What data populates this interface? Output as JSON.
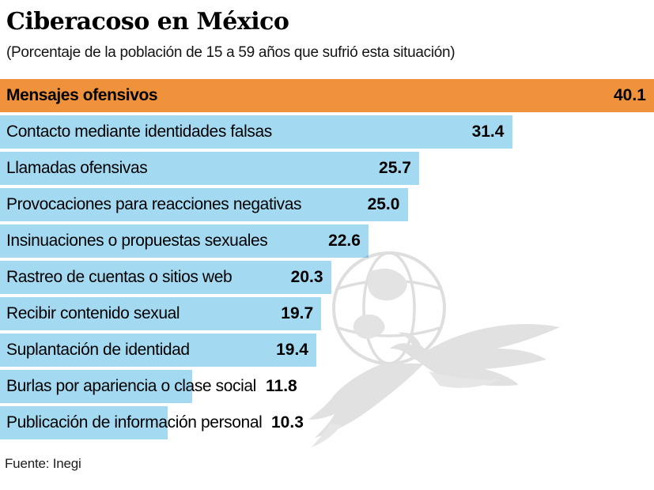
{
  "header": {
    "title": "Ciberacoso en México",
    "subtitle": "(Porcentaje de la población de 15 a 59 años que sufrió esta situación)"
  },
  "footer": {
    "source": "Fuente: Inegi"
  },
  "colors": {
    "highlight_bar": "#F0913C",
    "bar": "#A3DAF2",
    "text": "#000000",
    "watermark": "#E2E2E2"
  },
  "watermark": {
    "icon": "eagle-globe-logo"
  },
  "chart_data": {
    "type": "bar",
    "orientation": "horizontal",
    "title": "Ciberacoso en México",
    "subtitle": "(Porcentaje de la población de 15 a 59 años que sufrió esta situación)",
    "source": "Fuente: Inegi",
    "xlim": [
      0,
      40.1
    ],
    "max_value": 40.1,
    "grid": false,
    "legend": false,
    "axes_visible": false,
    "value_labels": "bold, right-aligned at bar end (flow after label when bar too short)",
    "highlight_index": 0,
    "categories": [
      "Mensajes ofensivos",
      "Contacto mediante identidades falsas",
      "Llamadas ofensivas",
      "Provocaciones para reacciones negativas",
      "Insinuaciones o propuestas sexuales",
      "Rastreo de cuentas o sitios web",
      "Recibir contenido sexual",
      "Suplantación de identidad",
      "Burlas por apariencia o clase social",
      "Publicación de información personal"
    ],
    "values": [
      40.1,
      31.4,
      25.7,
      25.0,
      22.6,
      20.3,
      19.7,
      19.4,
      11.8,
      10.3
    ]
  }
}
